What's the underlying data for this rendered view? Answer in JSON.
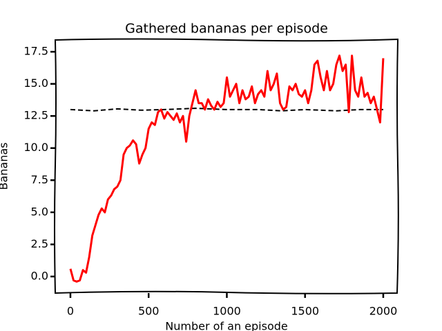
{
  "chart_data": {
    "type": "line",
    "title": "Gathered bananas per episode",
    "x_label": "Number of an episode",
    "y_label": "Bananas",
    "xlim": [
      -97,
      2093
    ],
    "ylim": [
      -1.29,
      18.47
    ],
    "xticks": [
      0,
      500,
      1000,
      1500,
      2000
    ],
    "yticks": [
      {
        "value": 0,
        "label": "0.0"
      },
      2.5,
      {
        "value": 5,
        "label": "5.0"
      },
      7.5,
      {
        "value": 10,
        "label": "10.0"
      },
      12.5,
      {
        "value": 15,
        "label": "15.0"
      },
      17.5
    ],
    "series": [
      {
        "color": "#ff0000",
        "dash": false,
        "x": [
          0,
          20,
          40,
          60,
          80,
          100,
          120,
          140,
          160,
          180,
          200,
          220,
          240,
          260,
          280,
          300,
          320,
          340,
          360,
          380,
          400,
          420,
          440,
          460,
          480,
          500,
          520,
          540,
          560,
          580,
          600,
          620,
          640,
          660,
          680,
          700,
          720,
          740,
          760,
          780,
          800,
          820,
          840,
          860,
          880,
          900,
          920,
          940,
          960,
          980,
          1000,
          1020,
          1040,
          1060,
          1080,
          1100,
          1120,
          1140,
          1160,
          1180,
          1200,
          1220,
          1240,
          1260,
          1280,
          1300,
          1320,
          1340,
          1360,
          1380,
          1400,
          1420,
          1440,
          1460,
          1480,
          1500,
          1520,
          1540,
          1560,
          1580,
          1600,
          1620,
          1640,
          1660,
          1680,
          1700,
          1720,
          1740,
          1760,
          1780,
          1800,
          1820,
          1840,
          1860,
          1880,
          1900,
          1920,
          1940,
          1960,
          1980,
          2000
        ],
        "values": [
          0.6,
          -0.3,
          -0.4,
          -0.3,
          0.5,
          0.3,
          1.5,
          3.2,
          4.0,
          4.8,
          5.3,
          5.0,
          6.0,
          6.3,
          6.8,
          7.0,
          7.5,
          9.5,
          10.0,
          10.2,
          10.6,
          10.3,
          8.8,
          9.5,
          10.0,
          11.5,
          12.0,
          11.8,
          12.8,
          13.0,
          12.3,
          12.8,
          12.5,
          12.2,
          12.7,
          12.0,
          12.5,
          10.5,
          12.5,
          13.5,
          14.5,
          13.5,
          13.5,
          13.0,
          13.8,
          13.3,
          13.0,
          13.6,
          13.2,
          13.5,
          15.5,
          14.0,
          14.5,
          15.0,
          13.5,
          14.5,
          13.8,
          14.0,
          14.8,
          13.5,
          14.2,
          14.5,
          14.0,
          16.0,
          14.5,
          15.0,
          15.8,
          13.5,
          13.0,
          13.2,
          14.8,
          14.5,
          15.0,
          14.2,
          14.0,
          14.5,
          13.5,
          14.5,
          16.5,
          16.8,
          15.5,
          14.5,
          16.0,
          14.5,
          15.0,
          16.5,
          17.2,
          16.0,
          16.5,
          12.8,
          17.2,
          14.5,
          14.0,
          15.5,
          14.0,
          14.3,
          13.5,
          14.0,
          13.0,
          12.0,
          17.0
        ]
      },
      {
        "color": "#000000",
        "dash": true,
        "x": [
          0,
          150,
          300,
          450,
          600,
          800,
          1000,
          1200,
          1350,
          1500,
          1700,
          1850,
          2000
        ],
        "values": [
          13.0,
          12.9,
          13.05,
          12.95,
          13.0,
          13.1,
          13.0,
          13.0,
          12.9,
          13.0,
          12.9,
          13.0,
          13.0
        ]
      }
    ]
  }
}
